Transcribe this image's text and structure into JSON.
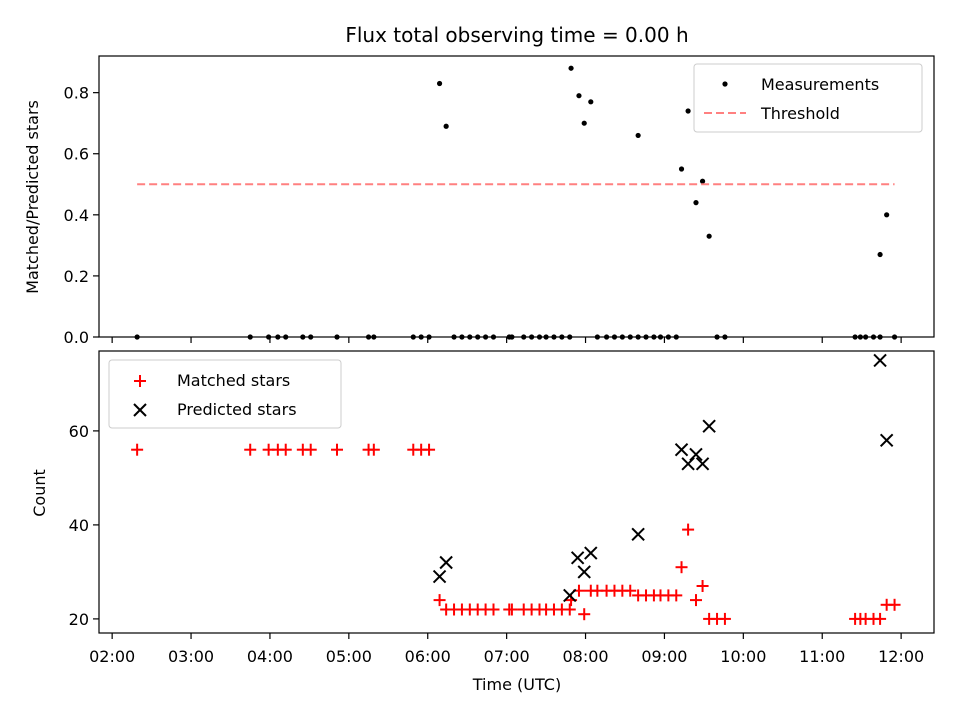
{
  "chart_data": [
    {
      "type": "scatter",
      "title": "Flux total observing time = 0.00 h",
      "xlabel": "",
      "ylabel": "Matched/Predicted stars",
      "xlim": [
        "01:50",
        "12:25"
      ],
      "ylim": [
        0.0,
        0.92
      ],
      "yticks": [
        "0.0",
        "0.2",
        "0.4",
        "0.6",
        "0.8"
      ],
      "legend": {
        "placement": "top-right",
        "entries": [
          "Measurements",
          "Threshold"
        ]
      },
      "series": [
        {
          "name": "Measurements",
          "color": "#000000",
          "marker": "dot",
          "points": [
            [
              "02:19",
              0.0
            ],
            [
              "03:45",
              0.0
            ],
            [
              "03:59",
              0.0
            ],
            [
              "04:06",
              0.0
            ],
            [
              "04:12",
              0.0
            ],
            [
              "04:25",
              0.0
            ],
            [
              "04:31",
              0.0
            ],
            [
              "04:51",
              0.0
            ],
            [
              "05:15",
              0.0
            ],
            [
              "05:19",
              0.0
            ],
            [
              "05:49",
              0.0
            ],
            [
              "05:55",
              0.0
            ],
            [
              "06:01",
              0.0
            ],
            [
              "06:09",
              0.83
            ],
            [
              "06:14",
              0.69
            ],
            [
              "06:20",
              0.0
            ],
            [
              "06:26",
              0.0
            ],
            [
              "06:32",
              0.0
            ],
            [
              "06:38",
              0.0
            ],
            [
              "06:44",
              0.0
            ],
            [
              "06:50",
              0.0
            ],
            [
              "07:02",
              0.0
            ],
            [
              "07:04",
              0.0
            ],
            [
              "07:13",
              0.0
            ],
            [
              "07:19",
              0.0
            ],
            [
              "07:25",
              0.0
            ],
            [
              "07:30",
              0.0
            ],
            [
              "07:36",
              0.0
            ],
            [
              "07:42",
              0.0
            ],
            [
              "07:48",
              0.0
            ],
            [
              "07:49",
              0.88
            ],
            [
              "07:55",
              0.79
            ],
            [
              "07:59",
              0.7
            ],
            [
              "08:04",
              0.77
            ],
            [
              "08:09",
              0.0
            ],
            [
              "08:16",
              0.0
            ],
            [
              "08:22",
              0.0
            ],
            [
              "08:28",
              0.0
            ],
            [
              "08:34",
              0.0
            ],
            [
              "08:40",
              0.0
            ],
            [
              "08:40",
              0.66
            ],
            [
              "08:46",
              0.0
            ],
            [
              "08:52",
              0.0
            ],
            [
              "08:57",
              0.0
            ],
            [
              "09:03",
              0.0
            ],
            [
              "09:09",
              0.0
            ],
            [
              "09:13",
              0.55
            ],
            [
              "09:18",
              0.74
            ],
            [
              "09:24",
              0.44
            ],
            [
              "09:29",
              0.51
            ],
            [
              "09:34",
              0.33
            ],
            [
              "09:40",
              0.0
            ],
            [
              "09:46",
              0.0
            ],
            [
              "11:25",
              0.0
            ],
            [
              "11:29",
              0.0
            ],
            [
              "11:33",
              0.0
            ],
            [
              "11:39",
              0.0
            ],
            [
              "11:44",
              0.0
            ],
            [
              "11:44",
              0.27
            ],
            [
              "11:49",
              0.4
            ],
            [
              "11:55",
              0.0
            ]
          ]
        },
        {
          "name": "Threshold",
          "color": "#ff8080",
          "style": "dashed",
          "points": [
            [
              "02:19",
              0.5
            ],
            [
              "11:55",
              0.5
            ]
          ]
        }
      ]
    },
    {
      "type": "scatter",
      "title": "",
      "xlabel": "Time (UTC)",
      "ylabel": "Count",
      "xlim": [
        "01:50",
        "12:25"
      ],
      "ylim": [
        17,
        77
      ],
      "xticks": [
        "02:00",
        "03:00",
        "04:00",
        "05:00",
        "06:00",
        "07:00",
        "08:00",
        "09:00",
        "10:00",
        "11:00",
        "12:00"
      ],
      "yticks": [
        "20",
        "40",
        "60"
      ],
      "legend": {
        "placement": "top-left",
        "entries": [
          "Matched stars",
          "Predicted stars"
        ]
      },
      "series": [
        {
          "name": "Matched stars",
          "color": "#ff0000",
          "marker": "plus",
          "points": [
            [
              "02:19",
              56
            ],
            [
              "03:45",
              56
            ],
            [
              "03:59",
              56
            ],
            [
              "04:06",
              56
            ],
            [
              "04:12",
              56
            ],
            [
              "04:25",
              56
            ],
            [
              "04:31",
              56
            ],
            [
              "04:51",
              56
            ],
            [
              "05:15",
              56
            ],
            [
              "05:19",
              56
            ],
            [
              "05:49",
              56
            ],
            [
              "05:55",
              56
            ],
            [
              "06:01",
              56
            ],
            [
              "06:09",
              24
            ],
            [
              "06:14",
              22
            ],
            [
              "06:20",
              22
            ],
            [
              "06:26",
              22
            ],
            [
              "06:32",
              22
            ],
            [
              "06:38",
              22
            ],
            [
              "06:44",
              22
            ],
            [
              "06:50",
              22
            ],
            [
              "07:02",
              22
            ],
            [
              "07:04",
              22
            ],
            [
              "07:13",
              22
            ],
            [
              "07:19",
              22
            ],
            [
              "07:25",
              22
            ],
            [
              "07:30",
              22
            ],
            [
              "07:36",
              22
            ],
            [
              "07:42",
              22
            ],
            [
              "07:48",
              22
            ],
            [
              "07:49",
              24
            ],
            [
              "07:55",
              26
            ],
            [
              "07:59",
              21
            ],
            [
              "08:04",
              26
            ],
            [
              "08:09",
              26
            ],
            [
              "08:16",
              26
            ],
            [
              "08:22",
              26
            ],
            [
              "08:28",
              26
            ],
            [
              "08:34",
              26
            ],
            [
              "08:40",
              25
            ],
            [
              "08:46",
              25
            ],
            [
              "08:52",
              25
            ],
            [
              "08:57",
              25
            ],
            [
              "09:03",
              25
            ],
            [
              "09:09",
              25
            ],
            [
              "09:13",
              31
            ],
            [
              "09:18",
              39
            ],
            [
              "09:24",
              24
            ],
            [
              "09:29",
              27
            ],
            [
              "09:34",
              20
            ],
            [
              "09:40",
              20
            ],
            [
              "09:46",
              20
            ],
            [
              "11:25",
              20
            ],
            [
              "11:29",
              20
            ],
            [
              "11:33",
              20
            ],
            [
              "11:39",
              20
            ],
            [
              "11:44",
              20
            ],
            [
              "11:49",
              23
            ],
            [
              "11:55",
              23
            ]
          ]
        },
        {
          "name": "Predicted stars",
          "color": "#000000",
          "marker": "x",
          "points": [
            [
              "06:09",
              29
            ],
            [
              "06:14",
              32
            ],
            [
              "07:48",
              25
            ],
            [
              "07:54",
              33
            ],
            [
              "07:59",
              30
            ],
            [
              "08:04",
              34
            ],
            [
              "08:40",
              38
            ],
            [
              "09:13",
              56
            ],
            [
              "09:18",
              53
            ],
            [
              "09:24",
              55
            ],
            [
              "09:29",
              53
            ],
            [
              "09:34",
              61
            ],
            [
              "11:44",
              75
            ],
            [
              "11:49",
              58
            ]
          ]
        }
      ]
    }
  ]
}
